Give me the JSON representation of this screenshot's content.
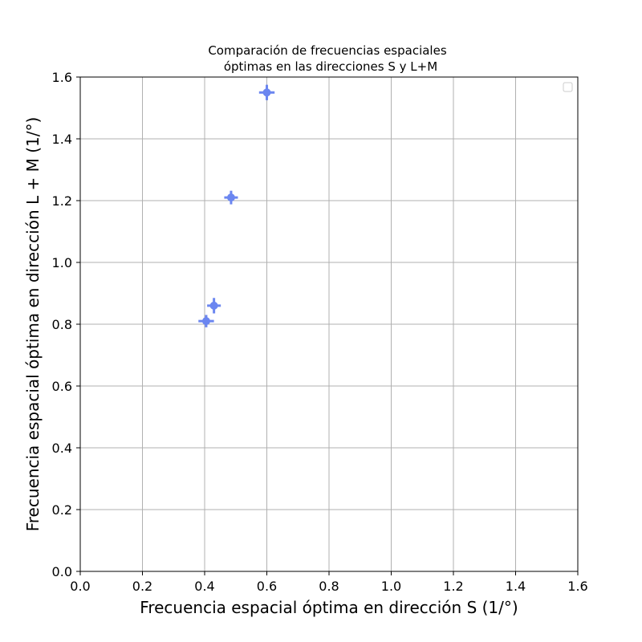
{
  "chart_data": {
    "type": "scatter",
    "title_lines": [
      "Comparación de frecuencias espaciales",
      "óptimas en las direcciones S y L+M"
    ],
    "xlabel": "Frecuencia espacial óptima en dirección S (1/°)",
    "ylabel": "Frecuencia espacial óptima en dirección L + M (1/°)",
    "xlim": [
      0.0,
      1.6
    ],
    "ylim": [
      0.0,
      1.6
    ],
    "xticks": [
      "0.0",
      "0.2",
      "0.4",
      "0.6",
      "0.8",
      "1.0",
      "1.2",
      "1.4",
      "1.6"
    ],
    "yticks": [
      "0.0",
      "0.2",
      "0.4",
      "0.6",
      "0.8",
      "1.0",
      "1.2",
      "1.4",
      "1.6"
    ],
    "grid": true,
    "legend": "top-right, empty",
    "series_color": "#6b86f0",
    "points": [
      {
        "x": 0.405,
        "y": 0.81,
        "xerr": 0.025,
        "yerr": 0.02
      },
      {
        "x": 0.43,
        "y": 0.86,
        "xerr": 0.022,
        "yerr": 0.025
      },
      {
        "x": 0.485,
        "y": 1.21,
        "xerr": 0.022,
        "yerr": 0.022
      },
      {
        "x": 0.6,
        "y": 1.55,
        "xerr": 0.025,
        "yerr": 0.025
      }
    ]
  }
}
